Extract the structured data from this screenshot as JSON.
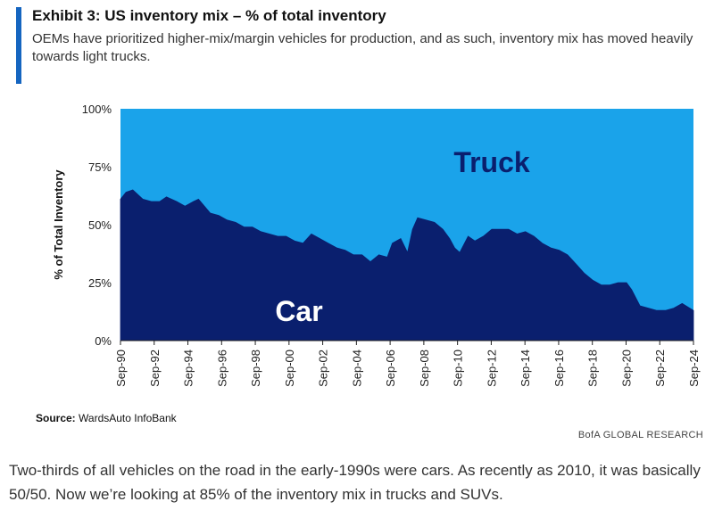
{
  "header": {
    "title": "Exhibit 3: US inventory mix – % of total inventory",
    "subtitle": "OEMs have prioritized higher-mix/margin vehicles for production, and as such, inventory mix has moved heavily towards light trucks."
  },
  "colors": {
    "accent": "#1565c0",
    "truck": "#1aa3ea",
    "car": "#0a1f6e",
    "truck_label": "#0a1f6e",
    "car_label": "#ffffff"
  },
  "source": {
    "label": "Source:",
    "text": " WardsAuto InfoBank"
  },
  "brand": "BofA GLOBAL RESEARCH",
  "body_text": "Two-thirds of all vehicles on the road in the early-1990s were cars. As recently as 2010, it was basically 50/50. Now we’re looking at 85% of the inventory mix in trucks and SUVs.",
  "chart_data": {
    "type": "area",
    "stacked": true,
    "title": "Exhibit 3: US inventory mix – % of total inventory",
    "ylabel": "% of Total Inventory",
    "xlabel": "",
    "ylim": [
      0,
      100
    ],
    "yticks": [
      "0%",
      "25%",
      "50%",
      "75%",
      "100%"
    ],
    "xlim": [
      1990.67,
      2024.67
    ],
    "xticks": [
      "Sep-90",
      "Sep-92",
      "Sep-94",
      "Sep-96",
      "Sep-98",
      "Sep-00",
      "Sep-02",
      "Sep-04",
      "Sep-06",
      "Sep-08",
      "Sep-10",
      "Sep-12",
      "Sep-14",
      "Sep-16",
      "Sep-18",
      "Sep-20",
      "Sep-22",
      "Sep-24"
    ],
    "grid": false,
    "legend": "none",
    "annotations": [
      {
        "text": "Truck",
        "series": "Truck"
      },
      {
        "text": "Car",
        "series": "Car"
      }
    ],
    "series": [
      {
        "name": "Car",
        "x": [
          1990.67,
          1991.0,
          1991.4,
          1992.0,
          1992.5,
          1993.0,
          1993.4,
          1994.0,
          1994.5,
          1995.0,
          1995.3,
          1996.0,
          1996.5,
          1997.0,
          1997.5,
          1998.0,
          1998.5,
          1999.0,
          1999.5,
          2000.0,
          2000.5,
          2001.0,
          2001.5,
          2002.0,
          2002.5,
          2003.0,
          2003.5,
          2004.0,
          2004.5,
          2005.0,
          2005.5,
          2006.0,
          2006.5,
          2006.8,
          2007.3,
          2007.7,
          2008.0,
          2008.3,
          2008.8,
          2009.3,
          2009.8,
          2010.2,
          2010.5,
          2010.8,
          2011.3,
          2011.7,
          2012.2,
          2012.7,
          2013.2,
          2013.7,
          2014.2,
          2014.7,
          2015.2,
          2015.7,
          2016.2,
          2016.7,
          2017.2,
          2017.7,
          2018.2,
          2018.7,
          2019.2,
          2019.7,
          2020.2,
          2020.7,
          2021.0,
          2021.5,
          2022.0,
          2022.5,
          2023.0,
          2023.5,
          2024.0,
          2024.67
        ],
        "values": [
          61,
          64,
          65,
          61,
          60,
          60,
          62,
          60,
          58,
          60,
          61,
          55,
          54,
          52,
          51,
          49,
          49,
          47,
          46,
          45,
          45,
          43,
          42,
          46,
          44,
          42,
          40,
          39,
          37,
          37,
          34,
          37,
          36,
          42,
          44,
          38,
          48,
          53,
          52,
          51,
          48,
          44,
          40,
          38,
          45,
          43,
          45,
          48,
          48,
          48,
          46,
          47,
          45,
          42,
          40,
          39,
          37,
          33,
          29,
          26,
          24,
          24,
          25,
          25,
          22,
          15,
          14,
          13,
          13,
          14,
          16,
          13
        ]
      },
      {
        "name": "Truck",
        "fill_to": 100
      }
    ]
  }
}
